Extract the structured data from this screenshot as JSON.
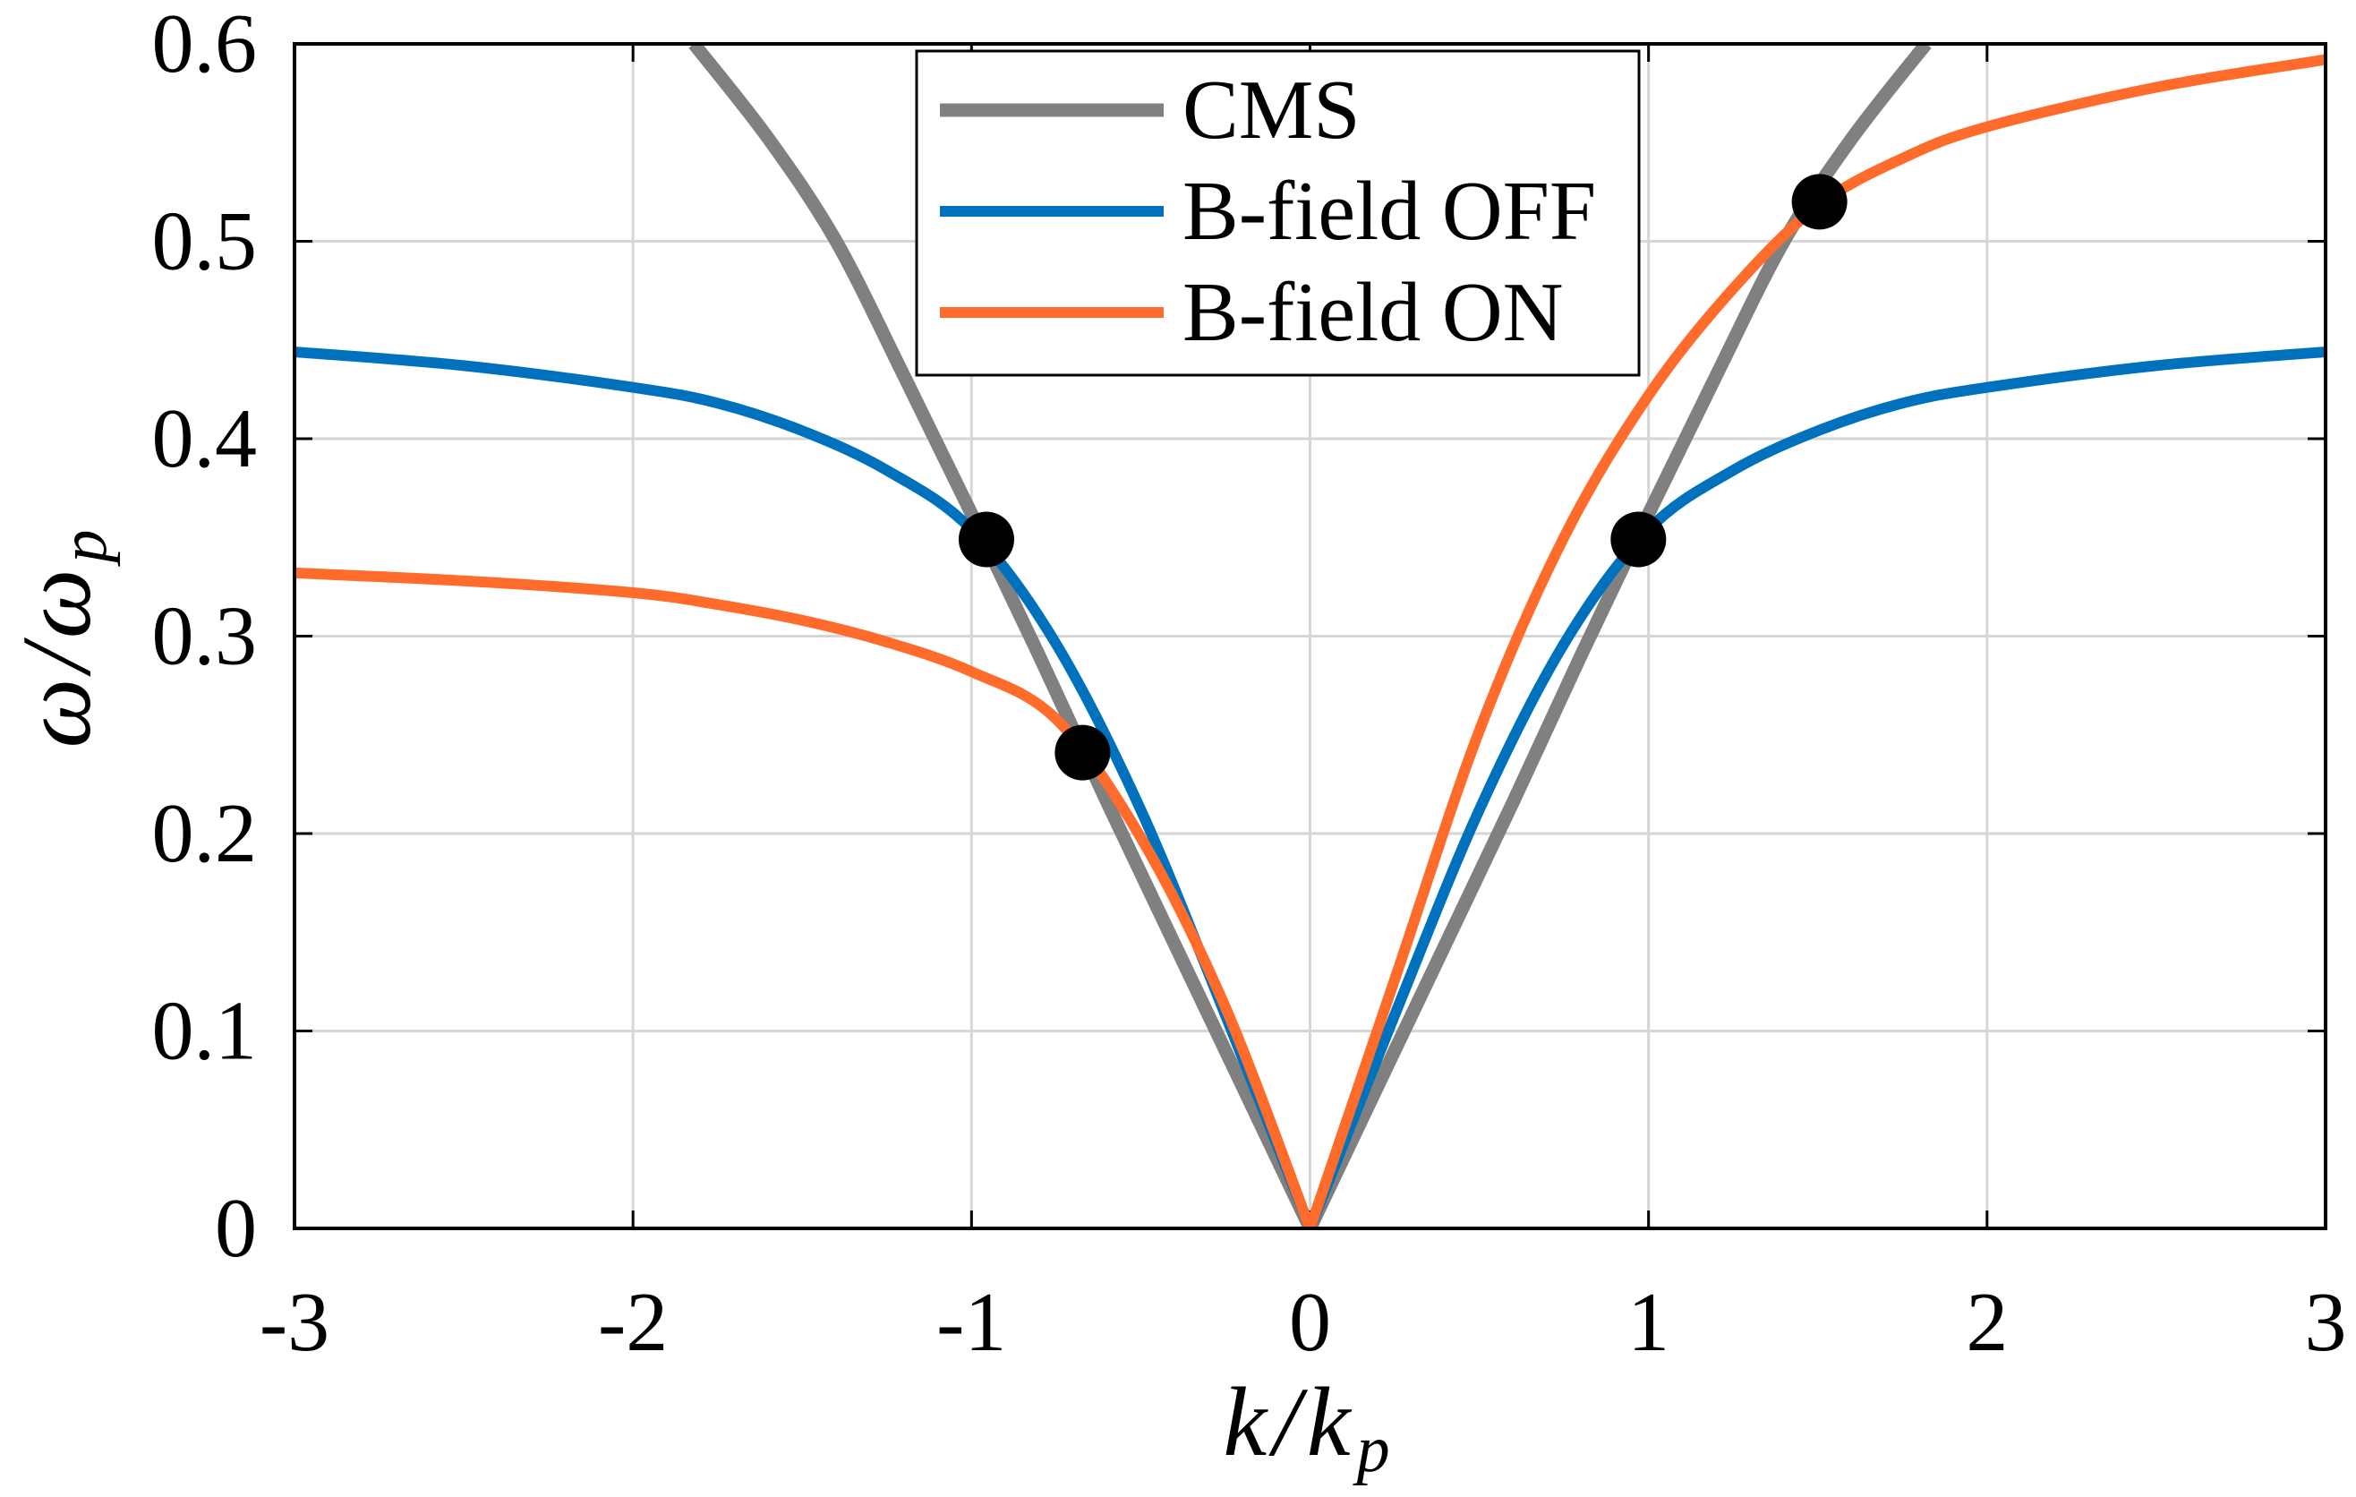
{
  "chart_data": {
    "type": "line",
    "xlabel": {
      "text": "k/k",
      "subscript": "p"
    },
    "ylabel": {
      "text": "ω/ω",
      "subscript": "p"
    },
    "xlim": [
      -3,
      3
    ],
    "ylim": [
      0,
      0.6
    ],
    "xticks": [
      -3,
      -2,
      -1,
      0,
      1,
      2,
      3
    ],
    "xtick_labels": [
      "-3",
      "-2",
      "-1",
      "0",
      "1",
      "2",
      "3"
    ],
    "yticks": [
      0,
      0.1,
      0.2,
      0.3,
      0.4,
      0.5,
      0.6
    ],
    "ytick_labels": [
      "0",
      "0.1",
      "0.2",
      "0.3",
      "0.4",
      "0.5",
      "0.6"
    ],
    "grid": true,
    "legend_position": "top-center",
    "series": [
      {
        "name": "CMS",
        "color": "#808080",
        "x": [
          -1.82,
          -1.6,
          -1.4,
          -1.2,
          -1.0,
          -0.8,
          -0.6,
          -0.4,
          -0.2,
          0,
          0.2,
          0.4,
          0.6,
          0.8,
          1.0,
          1.2,
          1.4,
          1.6,
          1.82
        ],
        "y": [
          0.6,
          0.552,
          0.5,
          0.432,
          0.362,
          0.29,
          0.216,
          0.144,
          0.072,
          0,
          0.072,
          0.144,
          0.216,
          0.29,
          0.362,
          0.432,
          0.5,
          0.552,
          0.6
        ]
      },
      {
        "name": "B-field OFF",
        "color": "#0072BD",
        "x": [
          -3,
          -2.5,
          -2,
          -1.75,
          -1.5,
          -1.25,
          -1,
          -0.75,
          -0.5,
          -0.25,
          0,
          0.25,
          0.5,
          0.75,
          1,
          1.25,
          1.5,
          1.75,
          2,
          2.5,
          3
        ],
        "y": [
          0.444,
          0.437,
          0.426,
          0.418,
          0.404,
          0.384,
          0.354,
          0.296,
          0.212,
          0.108,
          0,
          0.108,
          0.212,
          0.296,
          0.354,
          0.384,
          0.404,
          0.418,
          0.426,
          0.437,
          0.444
        ]
      },
      {
        "name": "B-field ON",
        "color": "#FF6B2B",
        "x": [
          -3,
          -2.5,
          -2,
          -1.75,
          -1.5,
          -1.25,
          -1,
          -0.75,
          -0.5,
          -0.25,
          0,
          0.25,
          0.5,
          0.75,
          1,
          1.25,
          1.5,
          1.75,
          2,
          2.5,
          3
        ],
        "y": [
          0.332,
          0.328,
          0.322,
          0.316,
          0.308,
          0.297,
          0.282,
          0.258,
          0.198,
          0.112,
          0,
          0.126,
          0.252,
          0.35,
          0.422,
          0.476,
          0.518,
          0.542,
          0.558,
          0.578,
          0.592
        ]
      }
    ],
    "markers": {
      "color": "#000000",
      "points": [
        {
          "x": -0.956,
          "y": 0.349
        },
        {
          "x": -0.672,
          "y": 0.241
        },
        {
          "x": 0.97,
          "y": 0.349
        },
        {
          "x": 1.505,
          "y": 0.52
        }
      ]
    }
  }
}
